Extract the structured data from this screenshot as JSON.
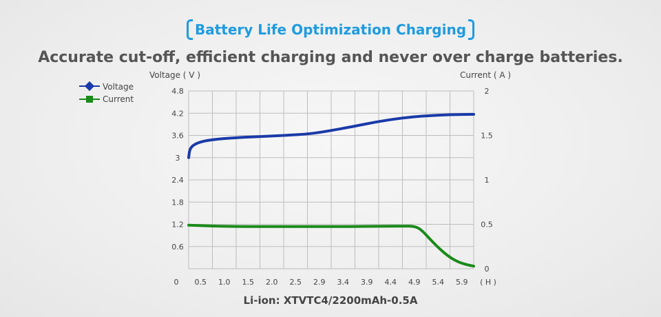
{
  "header": {
    "title": "Battery Life Optimization Charging",
    "subtitle": "Accurate cut-off, efficient charging and never over charge batteries."
  },
  "colors": {
    "title": "#1f9be0",
    "voltage": "#1a3aa8",
    "current": "#1a8a1a",
    "grid": "#bdbdbd"
  },
  "chart_data": {
    "type": "line",
    "title": "",
    "caption": "Li-ion: XTVTC4/2200mAh-0.5A",
    "x_origin_label": "0",
    "x_unit": "( H )",
    "x_ticks": [
      "0.5",
      "1.0",
      "1.5",
      "2.0",
      "2.5",
      "2.9",
      "3.4",
      "3.9",
      "4.4",
      "4.9",
      "5.4",
      "5.9"
    ],
    "xlim": [
      0,
      5.9
    ],
    "y_left": {
      "label": "Voltage ( V )",
      "ticks": [
        "4.8",
        "4.2",
        "3.6",
        "3",
        "2.4",
        "1.8",
        "1.2",
        "0.6"
      ],
      "ylim": [
        0,
        4.8
      ]
    },
    "y_right": {
      "label": "Current ( A )",
      "ticks": [
        "2",
        "1.5",
        "1",
        "0.5",
        "0"
      ],
      "ylim": [
        0,
        2
      ]
    },
    "grid": true,
    "legend": {
      "position": "top-left",
      "entries": [
        "Voltage",
        "Current"
      ]
    },
    "series": [
      {
        "name": "Voltage",
        "axis": "left",
        "x": [
          0,
          0.02,
          0.1,
          0.3,
          0.6,
          1.0,
          1.5,
          2.0,
          2.5,
          2.9,
          3.4,
          3.9,
          4.4,
          4.9,
          5.4,
          5.9
        ],
        "y": [
          3.0,
          3.22,
          3.35,
          3.45,
          3.5,
          3.54,
          3.57,
          3.6,
          3.64,
          3.72,
          3.84,
          3.97,
          4.07,
          4.13,
          4.16,
          4.17
        ]
      },
      {
        "name": "Current",
        "axis": "right",
        "x": [
          0,
          0.5,
          1.0,
          1.5,
          2.0,
          2.5,
          2.9,
          3.4,
          3.9,
          4.4,
          4.7,
          4.85,
          5.0,
          5.2,
          5.4,
          5.6,
          5.8,
          5.9
        ],
        "y": [
          0.49,
          0.48,
          0.475,
          0.475,
          0.475,
          0.475,
          0.475,
          0.475,
          0.478,
          0.48,
          0.48,
          0.42,
          0.33,
          0.22,
          0.13,
          0.07,
          0.04,
          0.03
        ]
      }
    ]
  }
}
